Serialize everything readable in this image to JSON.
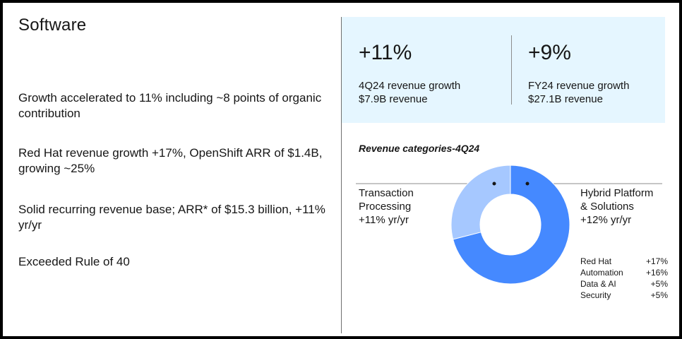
{
  "title": "Software",
  "bullets": [
    "Growth accelerated to 11% including ~8 points of organic contribution",
    "Red Hat revenue growth +17%, OpenShift ARR of $1.4B, growing ~25%",
    "Solid recurring revenue base; ARR* of $15.3 billion, +11% yr/yr",
    "Exceeded Rule of 40"
  ],
  "kpis": [
    {
      "value": "+11%",
      "label1": "4Q24 revenue growth",
      "label2": "$7.9B revenue"
    },
    {
      "value": "+9%",
      "label1": "FY24 revenue growth",
      "label2": "$27.1B revenue"
    }
  ],
  "chart": {
    "title": "Revenue categories-4Q24",
    "left_label": [
      "Transaction",
      "Processing",
      "+11% yr/yr"
    ],
    "right_label": [
      "Hybrid Platform",
      "& Solutions",
      "+12% yr/yr"
    ],
    "breakdown": [
      {
        "name": "Red Hat",
        "value": "+17%"
      },
      {
        "name": "Automation",
        "value": "+16%"
      },
      {
        "name": "Data & AI",
        "value": "+5%"
      },
      {
        "name": "Security",
        "value": "+5%"
      }
    ]
  },
  "chart_data": {
    "type": "pie",
    "title": "Revenue categories-4Q24",
    "labels": [
      "Hybrid Platform & Solutions",
      "Transaction Processing"
    ],
    "values": [
      71,
      29
    ],
    "colors": [
      "#4589ff",
      "#a6c8ff"
    ]
  },
  "colors": {
    "kpi_background": "#e5f6ff",
    "hybrid": "#4589ff",
    "transaction": "#a6c8ff"
  }
}
